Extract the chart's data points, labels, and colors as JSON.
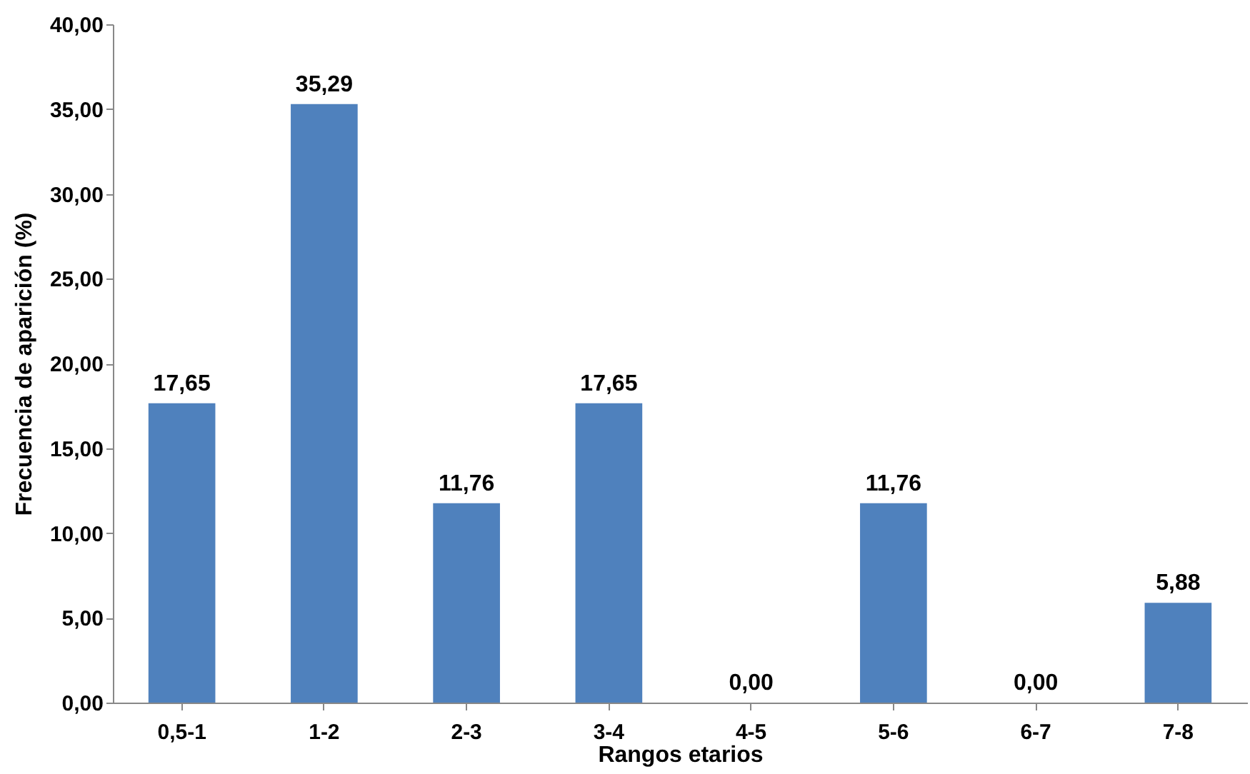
{
  "chart_data": {
    "type": "bar",
    "xlabel": "Rangos etarios",
    "ylabel": "Frecuencia de aparición (%)",
    "categories": [
      "0,5-1",
      "1-2",
      "2-3",
      "3-4",
      "4-5",
      "5-6",
      "6-7",
      "7-8"
    ],
    "values": [
      17.65,
      35.29,
      11.76,
      17.65,
      0,
      11.76,
      0,
      5.88
    ],
    "value_labels": [
      "17,65",
      "35,29",
      "11,76",
      "17,65",
      "0,00",
      "11,76",
      "0,00",
      "5,88"
    ],
    "color": "#4f81bd",
    "ylim": [
      0,
      40
    ],
    "yticks": [
      {
        "value": 0,
        "label": "0,00"
      },
      {
        "value": 5,
        "label": "5,00"
      },
      {
        "value": 10,
        "label": "10,00"
      },
      {
        "value": 15,
        "label": "15,00"
      },
      {
        "value": 20,
        "label": "20,00"
      },
      {
        "value": 25,
        "label": "25,00"
      },
      {
        "value": 30,
        "label": "30,00"
      },
      {
        "value": 35,
        "label": "35,00"
      },
      {
        "value": 40,
        "label": "40,00"
      }
    ],
    "grid": false
  }
}
